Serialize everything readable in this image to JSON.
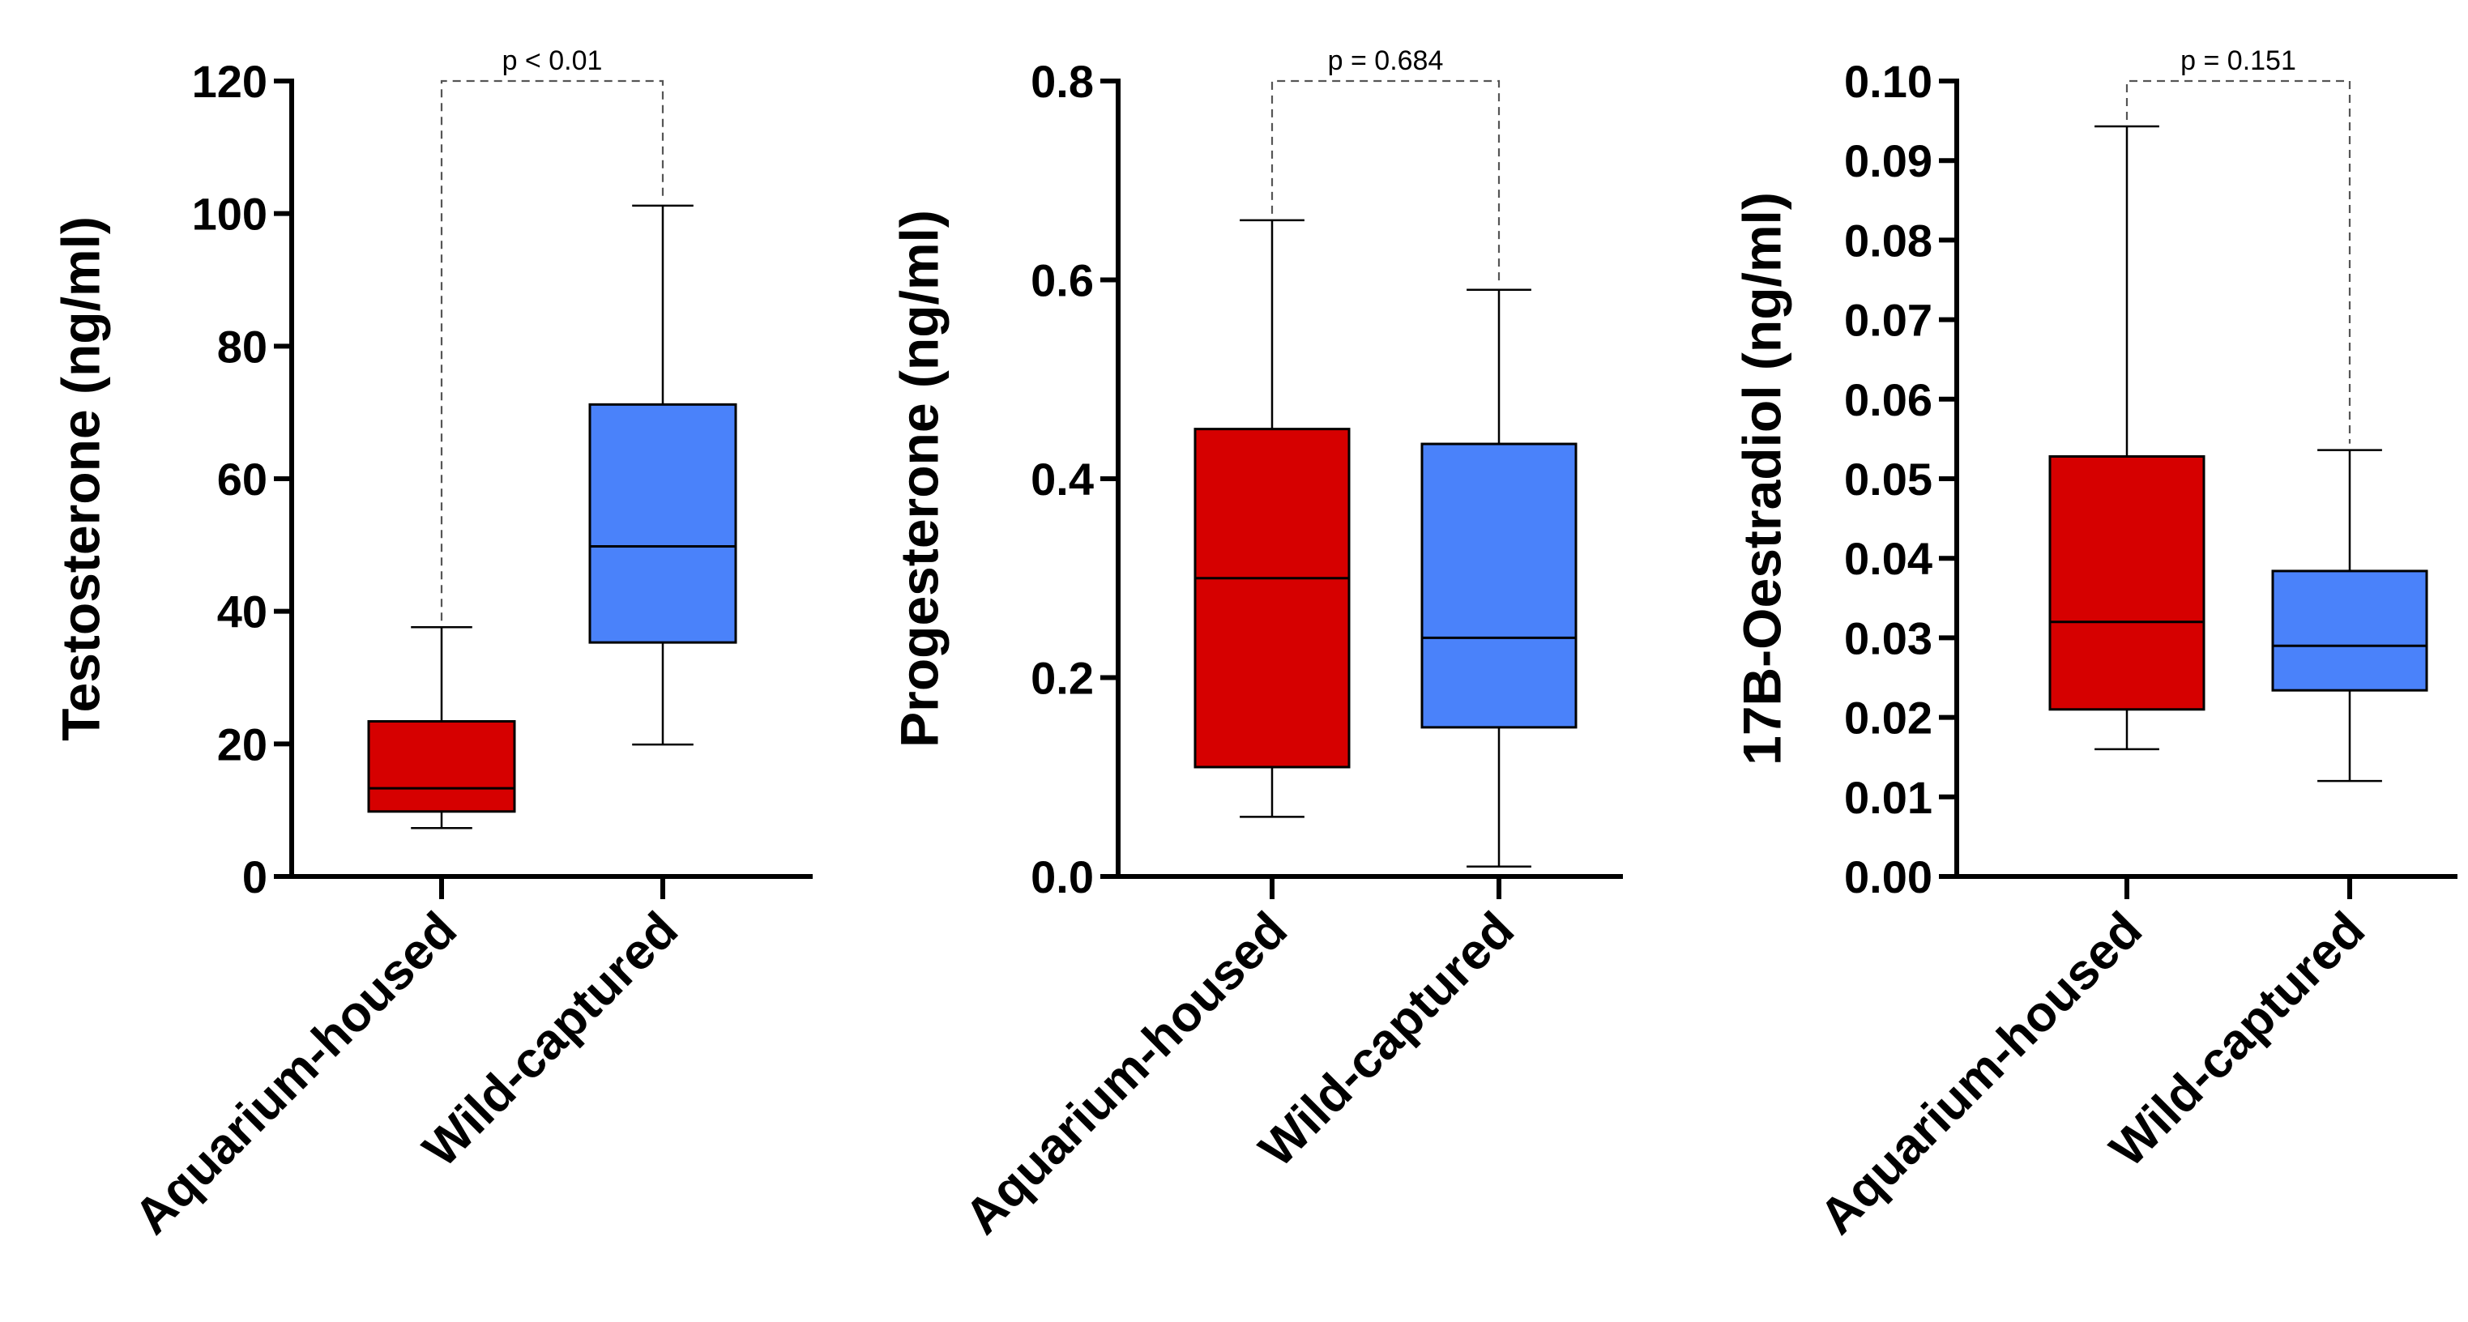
{
  "colors": {
    "aquarium": "#d60000",
    "wild": "#4a82fa"
  },
  "chart_data": [
    {
      "type": "box",
      "ylabel": "Testosterone (ng/ml)",
      "ylim": [
        0,
        120
      ],
      "yticks": [
        0,
        20,
        40,
        60,
        80,
        100,
        120
      ],
      "ytick_labels": [
        "0",
        "20",
        "40",
        "60",
        "80",
        "100",
        "120"
      ],
      "categories": [
        "Aquarium-housed",
        "Wild-captured"
      ],
      "boxes": [
        {
          "name": "Aquarium-housed",
          "min": 7.3,
          "q1": 9.8,
          "median": 13.3,
          "q3": 23.4,
          "max": 37.6
        },
        {
          "name": "Wild-captured",
          "min": 19.9,
          "q1": 35.3,
          "median": 49.8,
          "q3": 71.2,
          "max": 101.2
        }
      ],
      "p_value": "p < 0.01"
    },
    {
      "type": "box",
      "ylabel": "Progesterone (ng/ml)",
      "ylim": [
        0,
        0.8
      ],
      "yticks": [
        0,
        0.2,
        0.4,
        0.6,
        0.8
      ],
      "ytick_labels": [
        "0.0",
        "0.2",
        "0.4",
        "0.6",
        "0.8"
      ],
      "categories": [
        "Aquarium-housed",
        "Wild-captured"
      ],
      "boxes": [
        {
          "name": "Aquarium-housed",
          "min": 0.06,
          "q1": 0.11,
          "median": 0.3,
          "q3": 0.45,
          "max": 0.66
        },
        {
          "name": "Wild-captured",
          "min": 0.01,
          "q1": 0.15,
          "median": 0.24,
          "q3": 0.435,
          "max": 0.59
        }
      ],
      "p_value": "p = 0.684"
    },
    {
      "type": "box",
      "ylabel": "17B-Oestradiol (ng/ml)",
      "ylim": [
        0,
        0.1
      ],
      "yticks": [
        0,
        0.01,
        0.02,
        0.03,
        0.04,
        0.05,
        0.06,
        0.07,
        0.08,
        0.09,
        0.1
      ],
      "ytick_labels": [
        "0.00",
        "0.01",
        "0.02",
        "0.03",
        "0.04",
        "0.05",
        "0.06",
        "0.07",
        "0.08",
        "0.09",
        "0.10"
      ],
      "categories": [
        "Aquarium-housed",
        "Wild-captured"
      ],
      "boxes": [
        {
          "name": "Aquarium-housed",
          "min": 0.016,
          "q1": 0.021,
          "median": 0.032,
          "q3": 0.0528,
          "max": 0.0943
        },
        {
          "name": "Wild-captured",
          "min": 0.012,
          "q1": 0.0234,
          "median": 0.029,
          "q3": 0.0384,
          "max": 0.0536
        }
      ],
      "p_value": "p = 0.151"
    }
  ]
}
